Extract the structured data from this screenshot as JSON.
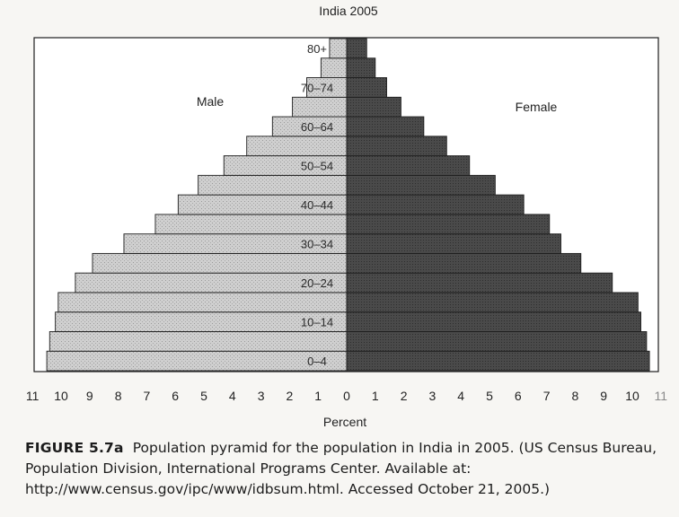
{
  "chart_data": {
    "type": "bar",
    "title": "India 2005",
    "xlabel": "Percent",
    "ylabel": "",
    "xlim": [
      -11,
      11
    ],
    "x_ticks": [
      "11",
      "10",
      "9",
      "8",
      "7",
      "6",
      "5",
      "4",
      "3",
      "2",
      "1",
      "0",
      "1",
      "2",
      "3",
      "4",
      "5",
      "6",
      "7",
      "8",
      "9",
      "10",
      "11"
    ],
    "grid": false,
    "categories": [
      "0–4",
      "5–9",
      "10–14",
      "15–19",
      "20–24",
      "25–29",
      "30–34",
      "35–39",
      "40–44",
      "45–49",
      "50–54",
      "55–59",
      "60–64",
      "65–69",
      "70–74",
      "75–79",
      "80+"
    ],
    "category_labels": [
      "0–4",
      "",
      "10–14",
      "",
      "20–24",
      "",
      "30–34",
      "",
      "40–44",
      "",
      "50–54",
      "",
      "60–64",
      "",
      "70–74",
      "",
      "80+"
    ],
    "series": [
      {
        "name": "Male",
        "side": "left",
        "color": "#c9c9c9",
        "values": [
          10.5,
          10.4,
          10.2,
          10.1,
          9.5,
          8.9,
          7.8,
          6.7,
          5.9,
          5.2,
          4.3,
          3.5,
          2.6,
          1.9,
          1.4,
          0.9,
          0.6
        ]
      },
      {
        "name": "Female",
        "side": "right",
        "color": "#4d4d4d",
        "values": [
          10.6,
          10.5,
          10.3,
          10.2,
          9.3,
          8.2,
          7.5,
          7.1,
          6.2,
          5.2,
          4.3,
          3.5,
          2.7,
          1.9,
          1.4,
          1.0,
          0.7
        ]
      }
    ]
  },
  "caption": {
    "label": "FIGURE 5.7a",
    "text": "Population pyramid for the population in India in 2005. (US Census Bureau, Population Division, International Programs Center. Available at: http://www.census.gov/ipc/www/idbsum.html. Accessed October 21, 2005.)"
  }
}
